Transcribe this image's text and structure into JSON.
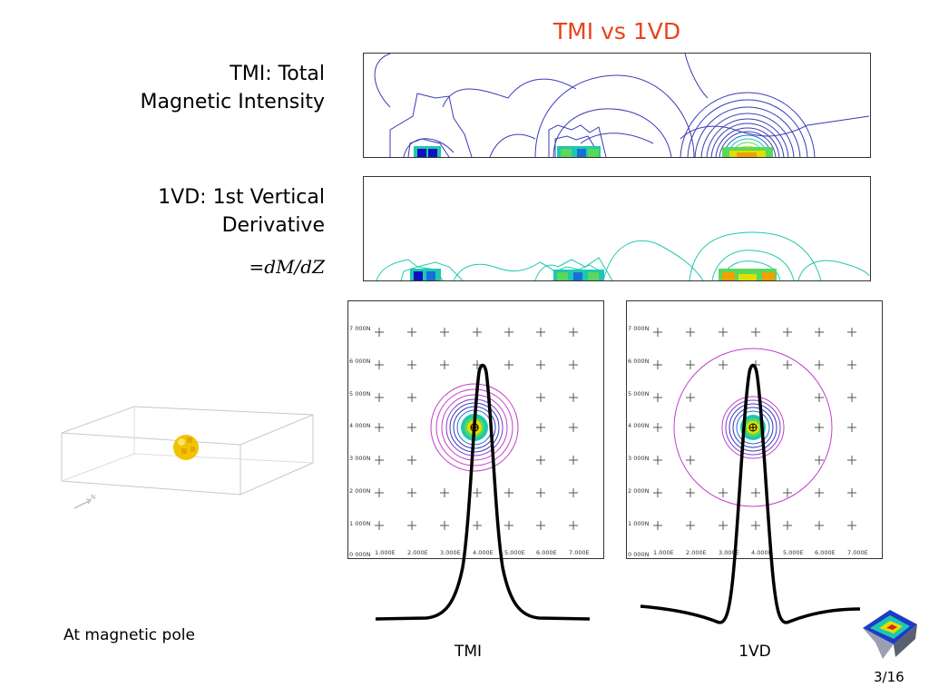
{
  "slide": {
    "title": "TMI vs 1VD",
    "tmi_label_line1": "TMI: Total",
    "tmi_label_line2": "Magnetic Intensity",
    "vd_label_line1": "1VD: 1st Vertical",
    "vd_label_line2": "Derivative",
    "formula": "=dM/dZ",
    "note": "At magnetic pole",
    "caption_left": "TMI",
    "caption_right": "1VD",
    "page_number": "3/16"
  },
  "maps": {
    "y_ticks": [
      "7 000N",
      "6 000N",
      "5 000N",
      "4 000N",
      "3 000N",
      "2 000N",
      "1 000N",
      "0 000N"
    ],
    "x_ticks": [
      "1.000E",
      "2.000E",
      "3.000E",
      "4.000E",
      "5.000E",
      "6.000E",
      "7.000E"
    ]
  },
  "colors": {
    "title": "#e8431a",
    "contour_blue": "#3a3ab8",
    "contour_cyan": "#1ec8b0",
    "contour_magenta": "#c23fc8",
    "sphere": "#f2c300"
  }
}
